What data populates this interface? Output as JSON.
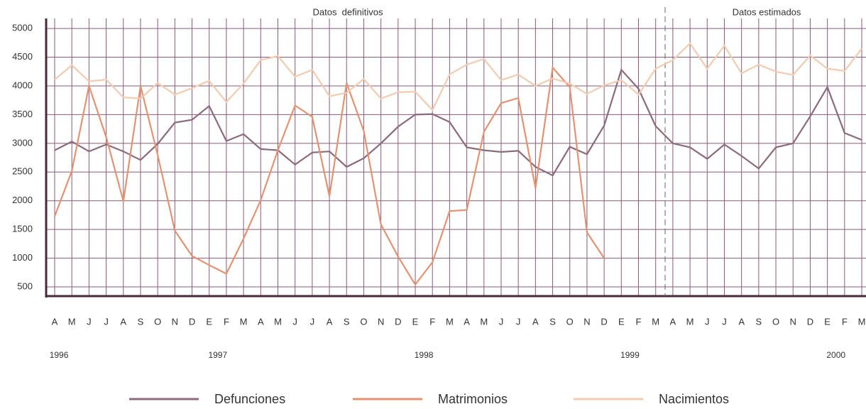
{
  "chart_data": {
    "type": "line",
    "annotations": [
      "Datos  definitivos",
      "Datos estimados"
    ],
    "categories": [
      "A",
      "M",
      "J",
      "J",
      "A",
      "S",
      "O",
      "N",
      "D",
      "E",
      "F",
      "M",
      "A",
      "M",
      "J",
      "J",
      "A",
      "S",
      "O",
      "N",
      "D",
      "E",
      "F",
      "M",
      "A",
      "M",
      "J",
      "J",
      "A",
      "S",
      "O",
      "N",
      "D",
      "E",
      "F",
      "M",
      "A",
      "M",
      "J",
      "J",
      "A",
      "S",
      "O",
      "N",
      "D",
      "E",
      "F",
      "M"
    ],
    "years": [
      "1996",
      "1997",
      "1998",
      "1999",
      "2000"
    ],
    "series": [
      {
        "name": "Defunciones",
        "color": "#8c6a7c",
        "values": [
          2880,
          3030,
          2860,
          2980,
          2860,
          2710,
          2990,
          3360,
          3410,
          3650,
          3040,
          3160,
          2900,
          2880,
          2630,
          2840,
          2860,
          2590,
          2740,
          3000,
          3290,
          3500,
          3510,
          3370,
          2930,
          2880,
          2850,
          2870,
          2590,
          2440,
          2940,
          2810,
          3310,
          4280,
          3950,
          3300,
          3000,
          2930,
          2730,
          2980,
          2780,
          2560,
          2930,
          3000,
          3470,
          3980,
          3180,
          3060
        ]
      },
      {
        "name": "Matrimonios",
        "color": "#e39272",
        "values": [
          1730,
          2520,
          4000,
          3110,
          1990,
          4000,
          2800,
          1480,
          1040,
          880,
          730,
          1340,
          2010,
          2880,
          3660,
          3460,
          2080,
          4050,
          3220,
          1590,
          1030,
          540,
          930,
          1820,
          1840,
          3200,
          3700,
          3790,
          2220,
          4320,
          3980,
          1450,
          1000,
          null,
          null,
          null,
          null,
          null,
          null,
          null,
          null,
          null,
          null,
          null,
          null,
          null,
          null,
          null
        ]
      },
      {
        "name": "Nacimientos",
        "color": "#f2cbb0",
        "values": [
          4110,
          4360,
          4080,
          4110,
          3800,
          3780,
          4050,
          3850,
          3960,
          4090,
          3720,
          4040,
          4450,
          4520,
          4160,
          4280,
          3820,
          3880,
          4120,
          3780,
          3890,
          3900,
          3580,
          4200,
          4370,
          4470,
          4100,
          4200,
          4000,
          4130,
          4040,
          3860,
          4010,
          4100,
          3850,
          4300,
          4450,
          4740,
          4300,
          4700,
          4220,
          4370,
          4250,
          4190,
          4530,
          4300,
          4260,
          4650
        ]
      }
    ],
    "ylim": [
      340,
      5100
    ],
    "yticks": [
      500,
      1000,
      1500,
      2000,
      2500,
      3000,
      3500,
      4000,
      4500,
      5000
    ],
    "grid": true
  }
}
